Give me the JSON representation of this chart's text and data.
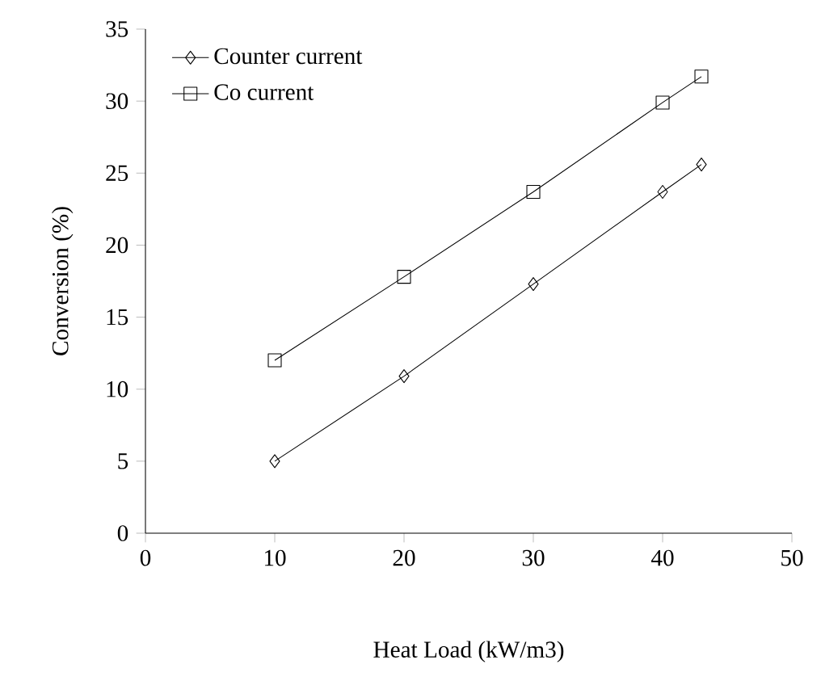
{
  "chart_data": {
    "type": "line",
    "xlabel": "Heat Load (kW/m3)",
    "ylabel": "Conversion (%)",
    "xlim": [
      0,
      50
    ],
    "xticks": [
      0,
      10,
      20,
      30,
      40,
      50
    ],
    "ylim": [
      0,
      35
    ],
    "yticks": [
      0,
      5,
      10,
      15,
      20,
      25,
      30,
      35
    ],
    "legend": "top left",
    "grid": false,
    "line_style": "solid",
    "series": [
      {
        "name": "Counter current",
        "color": "#000000",
        "marker": "diamond",
        "x": [
          10,
          20,
          30,
          40,
          43
        ],
        "values": [
          5,
          10.9,
          17.3,
          23.7,
          25.6
        ]
      },
      {
        "name": "Co current",
        "color": "#000000",
        "marker": "square",
        "x": [
          10,
          20,
          30,
          40,
          43
        ],
        "values": [
          12,
          17.8,
          23.7,
          29.9,
          31.7
        ]
      }
    ]
  }
}
